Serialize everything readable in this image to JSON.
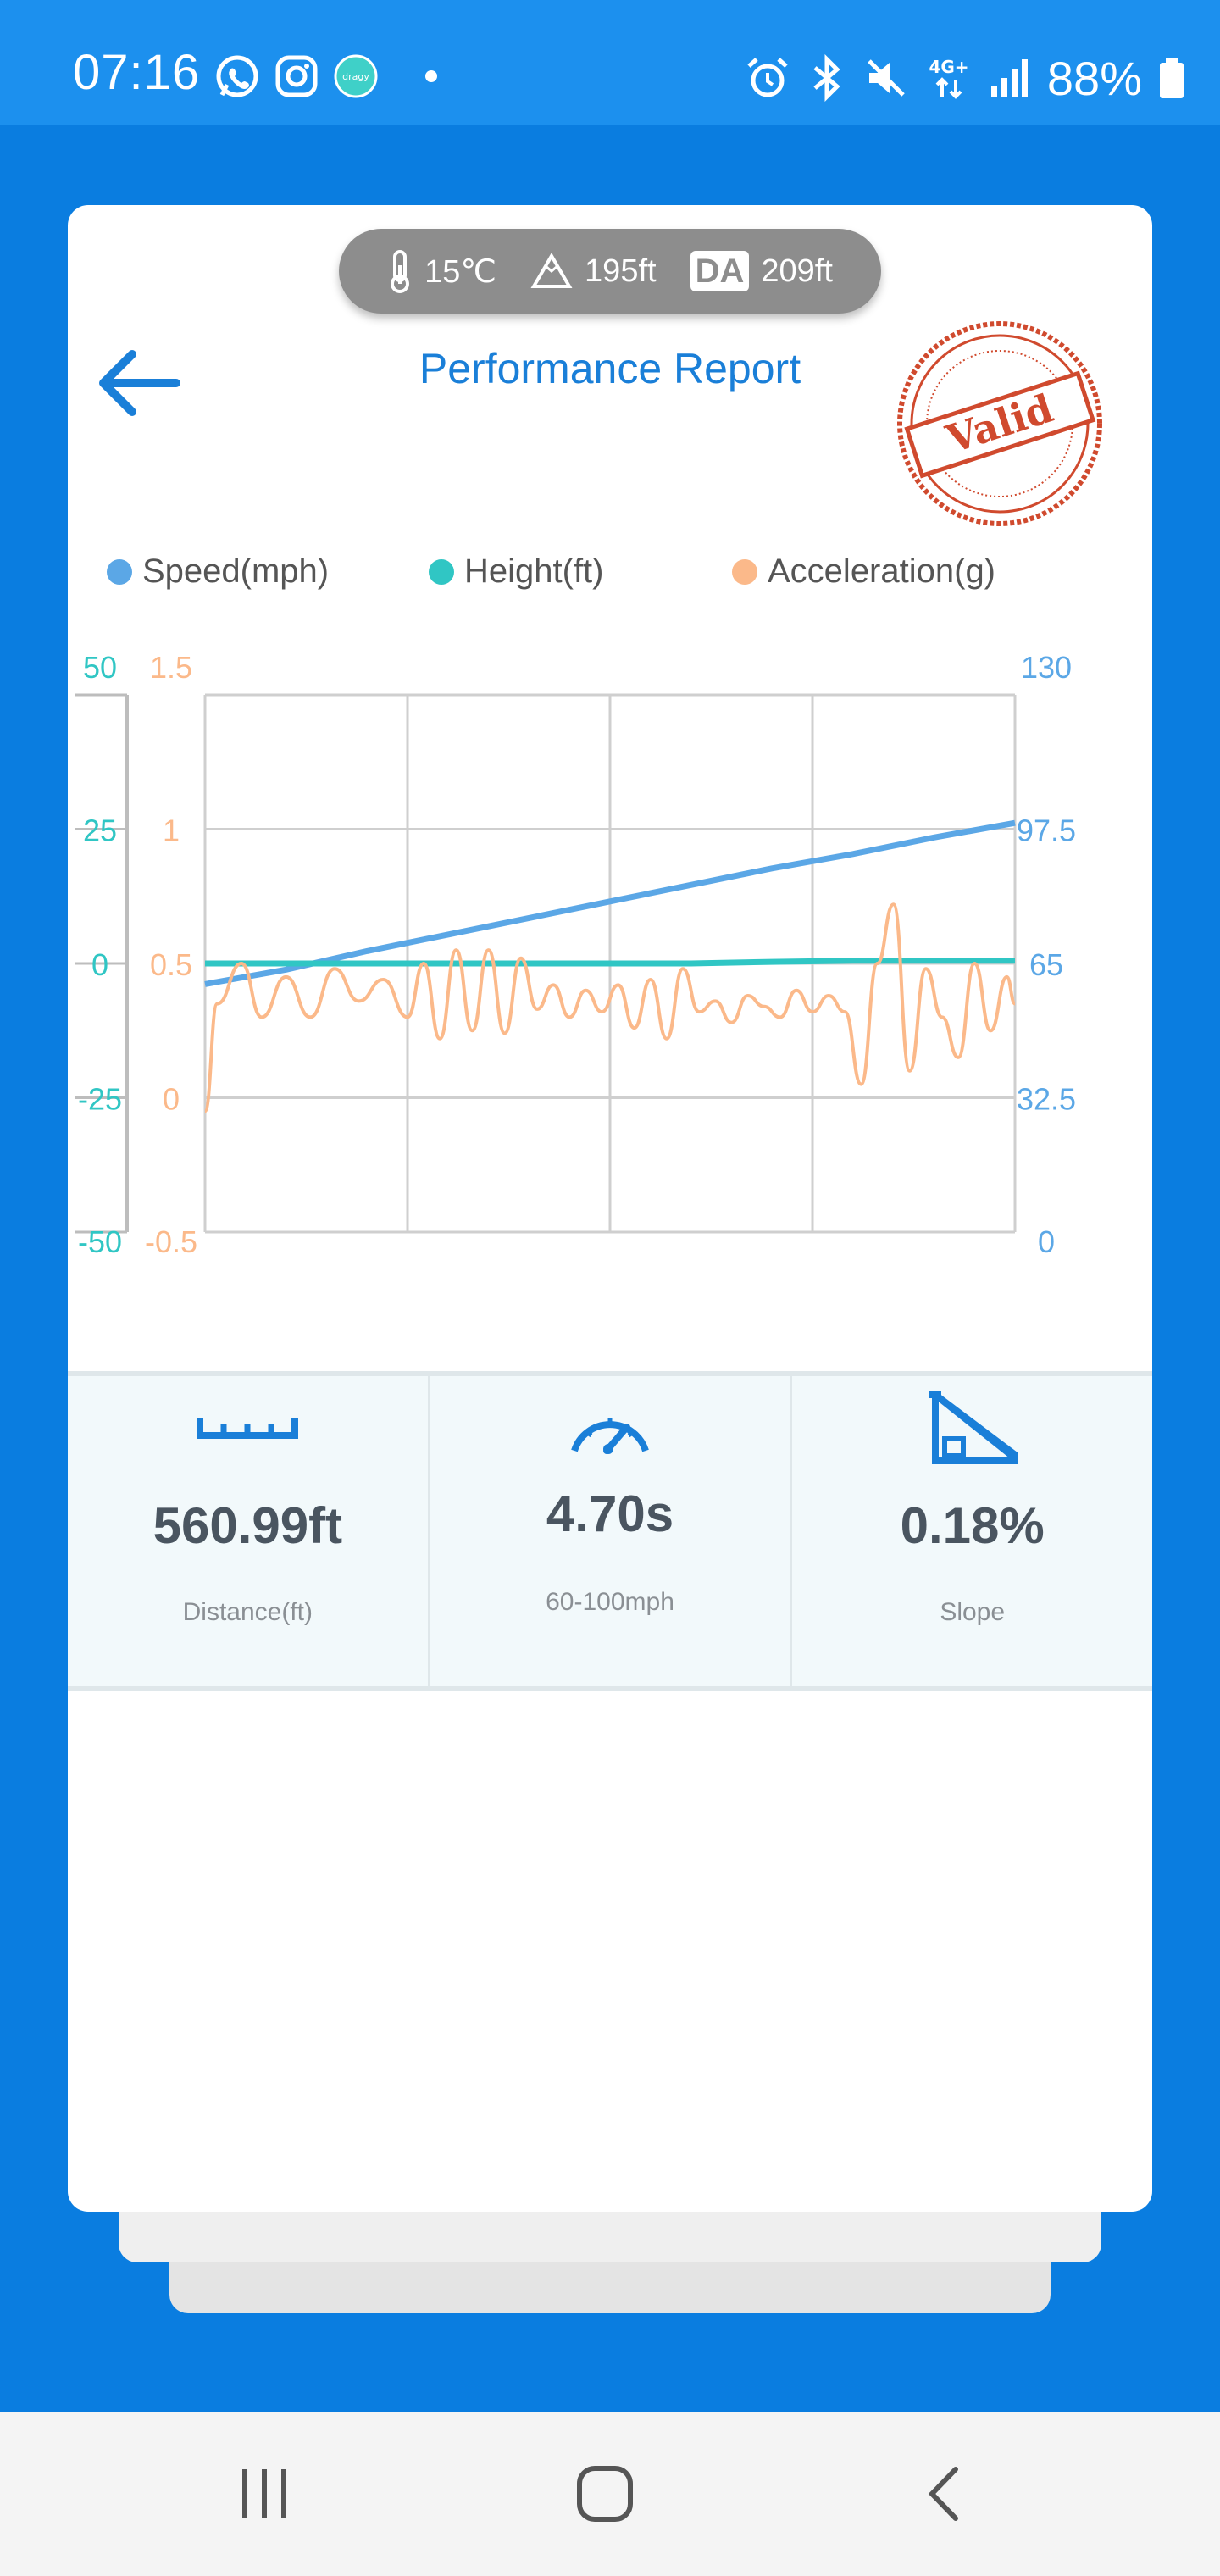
{
  "status_bar": {
    "time": "07:16",
    "left_icons": [
      "whatsapp-icon",
      "instagram-icon",
      "app-icon"
    ],
    "right_icons": [
      "alarm-icon",
      "bluetooth-icon",
      "mute-icon",
      "4g-icon",
      "signal-icon"
    ],
    "network": "4G+",
    "battery": "88%"
  },
  "environment": {
    "temperature": "15℃",
    "altitude": "195ft",
    "da_label": "DA",
    "density_altitude": "209ft"
  },
  "header": {
    "title": "Performance Report",
    "stamp_text": "Valid"
  },
  "legend": [
    {
      "label": "Speed(mph)",
      "color": "#5ba7e6"
    },
    {
      "label": "Height(ft)",
      "color": "#30c6c4"
    },
    {
      "label": "Acceleration(g)",
      "color": "#fbb98a"
    }
  ],
  "chart_data": {
    "type": "line",
    "axes": {
      "height": {
        "ticks": [
          "50",
          "25",
          "0",
          "-25",
          "-50"
        ],
        "range": [
          -50,
          50
        ],
        "color": "#30c6c4"
      },
      "acceleration": {
        "ticks": [
          "1.5",
          "1",
          "0.5",
          "0",
          "-0.5"
        ],
        "range": [
          -0.5,
          1.5
        ],
        "color": "#fbb98a"
      },
      "speed": {
        "ticks": [
          "130",
          "97.5",
          "65",
          "32.5",
          "0"
        ],
        "range": [
          0,
          130
        ],
        "color": "#5ba7e6"
      }
    },
    "x_range": [
      0,
      1
    ],
    "grid": true,
    "series": [
      {
        "name": "Speed(mph)",
        "axis": "speed",
        "color": "#5ba7e6",
        "x": [
          0,
          0.1,
          0.2,
          0.3,
          0.4,
          0.5,
          0.6,
          0.7,
          0.8,
          0.9,
          1.0
        ],
        "values": [
          60,
          63.5,
          68,
          72,
          76,
          80,
          84,
          88,
          91.5,
          95.5,
          99
        ]
      },
      {
        "name": "Height(ft)",
        "axis": "height",
        "color": "#30c6c4",
        "x": [
          0,
          0.1,
          0.2,
          0.3,
          0.4,
          0.5,
          0.6,
          0.7,
          0.8,
          0.9,
          1.0
        ],
        "values": [
          0,
          0,
          0,
          0,
          0,
          0,
          0,
          0.3,
          0.5,
          0.5,
          0.5
        ]
      },
      {
        "name": "Acceleration(g)",
        "axis": "acceleration",
        "color": "#fbb98a",
        "x": [
          0,
          0.015,
          0.045,
          0.07,
          0.1,
          0.13,
          0.16,
          0.19,
          0.22,
          0.25,
          0.27,
          0.29,
          0.31,
          0.33,
          0.35,
          0.37,
          0.39,
          0.41,
          0.43,
          0.45,
          0.47,
          0.49,
          0.51,
          0.53,
          0.55,
          0.57,
          0.59,
          0.61,
          0.63,
          0.65,
          0.67,
          0.69,
          0.71,
          0.73,
          0.75,
          0.77,
          0.79,
          0.81,
          0.83,
          0.85,
          0.87,
          0.89,
          0.91,
          0.93,
          0.95,
          0.97,
          0.99,
          1.0
        ],
        "values": [
          -0.05,
          0.35,
          0.5,
          0.3,
          0.45,
          0.3,
          0.48,
          0.36,
          0.44,
          0.3,
          0.5,
          0.22,
          0.55,
          0.25,
          0.55,
          0.24,
          0.52,
          0.33,
          0.42,
          0.3,
          0.4,
          0.32,
          0.42,
          0.26,
          0.44,
          0.22,
          0.48,
          0.32,
          0.36,
          0.28,
          0.38,
          0.34,
          0.3,
          0.4,
          0.32,
          0.38,
          0.32,
          0.05,
          0.5,
          0.72,
          0.1,
          0.48,
          0.3,
          0.15,
          0.5,
          0.25,
          0.45,
          0.35
        ]
      }
    ]
  },
  "stats": [
    {
      "icon": "ruler-icon",
      "value": "560.99ft",
      "label": "Distance(ft)"
    },
    {
      "icon": "speedometer-icon",
      "value": "4.70s",
      "label": "60-100mph"
    },
    {
      "icon": "slope-icon",
      "value": "0.18%",
      "label": "Slope"
    }
  ],
  "nav": [
    "recent-apps-icon",
    "home-icon",
    "back-nav-icon"
  ]
}
